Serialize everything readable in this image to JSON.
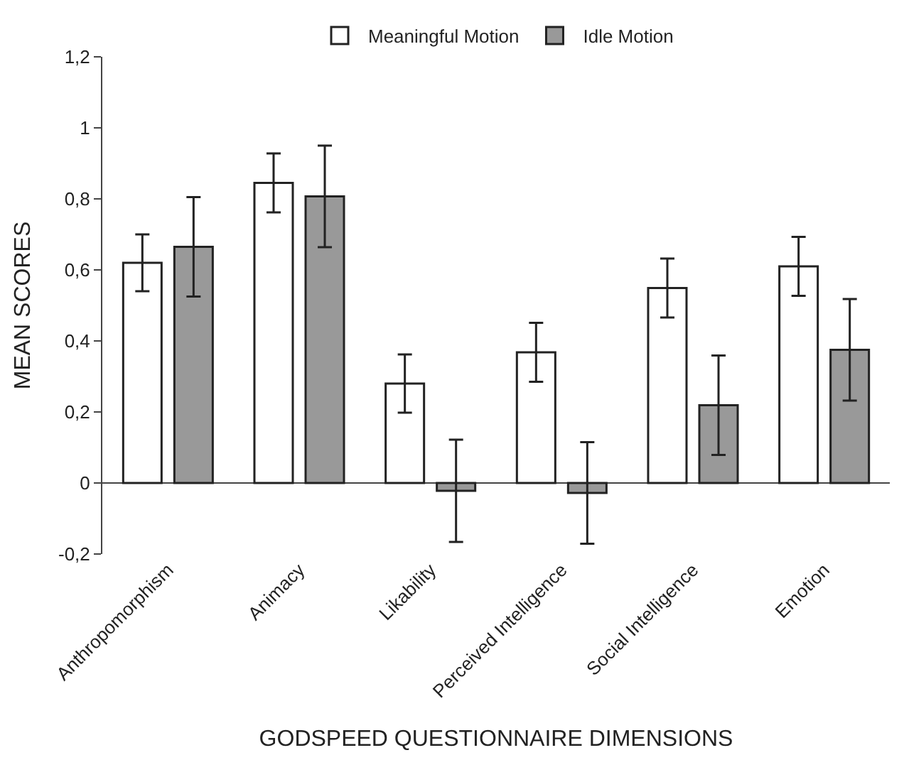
{
  "chart_data": {
    "type": "bar",
    "xlabel": "GODSPEED QUESTIONNAIRE DIMENSIONS",
    "ylabel": "MEAN SCORES",
    "categories": [
      "Anthropomorphism",
      "Animacy",
      "Likability",
      "Perceived Intelligence",
      "Social Intelligence",
      "Emotion"
    ],
    "series": [
      {
        "name": "Meaningful Motion",
        "color": "#ffffff",
        "values": [
          0.62,
          0.845,
          0.28,
          0.368,
          0.549,
          0.61
        ],
        "errors": [
          0.08,
          0.083,
          0.082,
          0.083,
          0.083,
          0.083
        ]
      },
      {
        "name": "Idle Motion",
        "color": "#999999",
        "values": [
          0.665,
          0.807,
          -0.022,
          -0.028,
          0.219,
          0.375
        ],
        "errors": [
          0.14,
          0.143,
          0.144,
          0.143,
          0.14,
          0.143
        ]
      }
    ],
    "ylim": [
      -0.2,
      1.2
    ],
    "yticks": [
      {
        "value": -0.2,
        "label": "-0,2"
      },
      0,
      {
        "value": 0.2,
        "label": "0,2"
      },
      {
        "value": 0.4,
        "label": "0,4"
      },
      {
        "value": 0.6,
        "label": "0,6"
      },
      {
        "value": 0.8,
        "label": "0,8"
      },
      1,
      {
        "value": 1.2,
        "label": "1,2"
      }
    ],
    "legend": "top"
  }
}
